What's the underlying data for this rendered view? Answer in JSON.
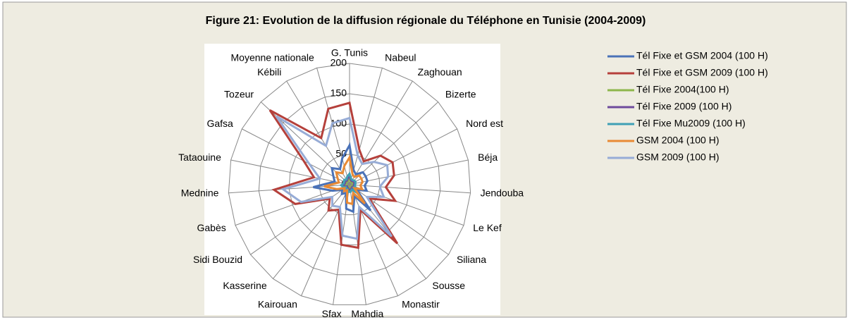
{
  "chart_data": {
    "type": "radar",
    "title": "Figure 21: Evolution de la diffusion régionale du Téléphone en Tunisie (2004-2009)",
    "categories": [
      "G. Tunis",
      "Nabeul",
      "Zaghouan",
      "Bizerte",
      "Nord est",
      "Béja",
      "Jendouba",
      "Le Kef",
      "Siliana",
      "Sousse",
      "Monastir",
      "Mahdia",
      "Sfax",
      "Kairouan",
      "Kasserine",
      "Sidi Bouzid",
      "Gabès",
      "Mednine",
      "Tataouine",
      "Gafsa",
      "Tozeur",
      "Kébili",
      "Moyenne nationale"
    ],
    "ylim": [
      0,
      200
    ],
    "yticks": [
      0,
      50,
      100,
      150,
      200
    ],
    "grid": true,
    "legend": "right",
    "series": [
      {
        "name": "Tél Fixe et GSM 2004 (100 H)",
        "color": "#4a72b8",
        "values": [
          65,
          25,
          20,
          30,
          30,
          30,
          25,
          30,
          15,
          55,
          20,
          45,
          40,
          15,
          20,
          15,
          30,
          60,
          25,
          30,
          40,
          30,
          45
        ]
      },
      {
        "name": "Tél Fixe et GSM 2009 (100 H)",
        "color": "#b5403b",
        "values": [
          135,
          60,
          45,
          70,
          80,
          75,
          60,
          80,
          40,
          125,
          45,
          105,
          100,
          45,
          55,
          40,
          95,
          125,
          60,
          85,
          180,
          90,
          130
        ]
      },
      {
        "name": "Tél Fixe 2004(100 H)",
        "color": "#8db64c",
        "values": [
          10,
          6,
          5,
          6,
          7,
          6,
          5,
          6,
          4,
          9,
          5,
          7,
          7,
          4,
          5,
          4,
          7,
          9,
          6,
          6,
          7,
          6,
          8
        ]
      },
      {
        "name": "Tél Fixe 2009 (100 H)",
        "color": "#6e4a9c",
        "values": [
          14,
          8,
          7,
          8,
          9,
          8,
          7,
          8,
          6,
          12,
          7,
          9,
          9,
          6,
          6,
          5,
          9,
          11,
          8,
          8,
          9,
          8,
          11
        ]
      },
      {
        "name": "Tél Fixe Mu2009 (100 H)",
        "color": "#3fa0b5",
        "values": [
          18,
          10,
          9,
          10,
          11,
          10,
          9,
          10,
          8,
          15,
          9,
          12,
          12,
          8,
          8,
          7,
          11,
          14,
          10,
          10,
          12,
          10,
          14
        ]
      },
      {
        "name": "GSM 2004 (100 H)",
        "color": "#e88a35",
        "values": [
          45,
          18,
          15,
          22,
          22,
          22,
          18,
          22,
          10,
          40,
          15,
          32,
          30,
          10,
          14,
          10,
          22,
          42,
          18,
          22,
          30,
          22,
          32
        ]
      },
      {
        "name": "GSM 2009 (100 H)",
        "color": "#97acd6",
        "values": [
          110,
          50,
          40,
          55,
          70,
          65,
          50,
          60,
          35,
          110,
          40,
          90,
          85,
          40,
          45,
          35,
          85,
          110,
          50,
          75,
          165,
          75,
          105
        ]
      }
    ]
  }
}
